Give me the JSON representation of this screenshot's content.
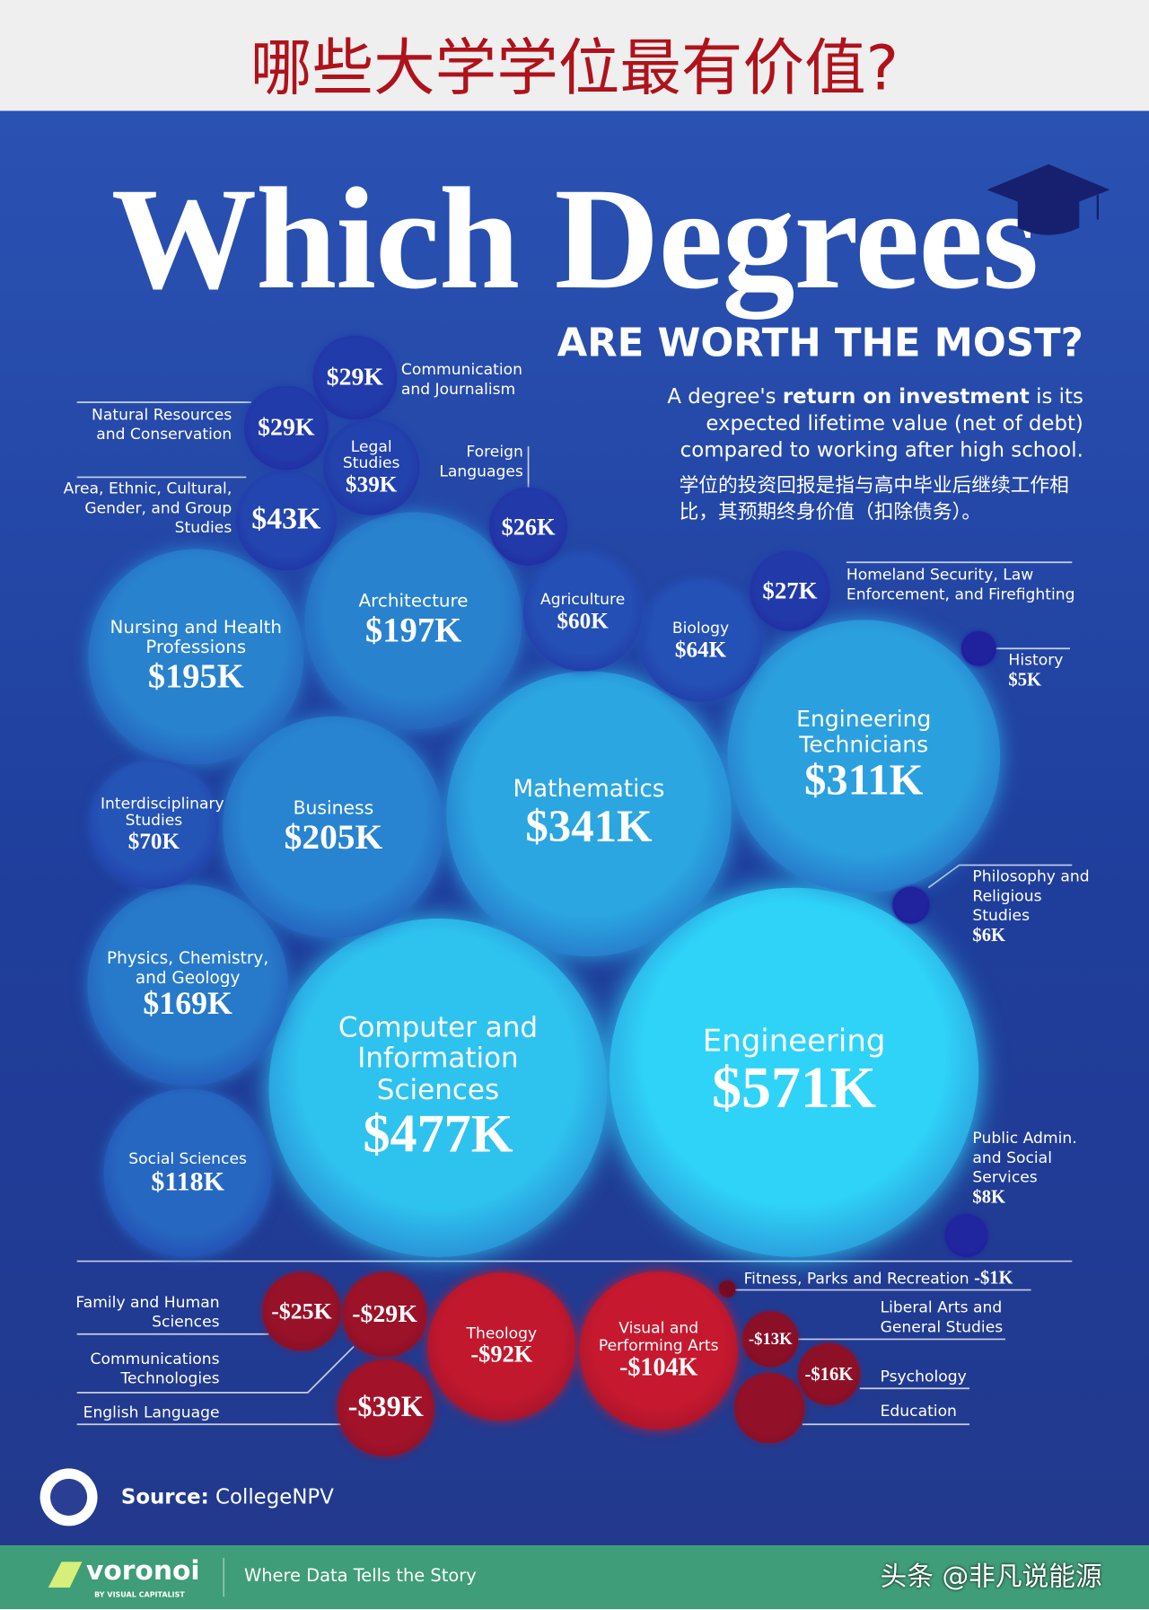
{
  "header": {
    "title": "哪些大学学位最有价值?"
  },
  "chart_data": {
    "type": "bubble",
    "title": "Which Degrees",
    "subtitle": "ARE WORTH THE MOST?",
    "description": [
      "A degree's ",
      "return on investment",
      " is its expected lifetime value (net of debt) compared to working after high school."
    ],
    "description_zh": "学位的投资回报是指与高中毕业后继续工作相比，其预期终身价值（扣除债务）。",
    "categories": [
      "Engineering",
      "Computer and Information Sciences",
      "Mathematics",
      "Engineering Technicians",
      "Business",
      "Architecture",
      "Nursing and Health Professions",
      "Physics, Chemistry, and Geology",
      "Social Sciences",
      "Interdisciplinary Studies",
      "Biology",
      "Agriculture",
      "Area, Ethnic, Cultural, Gender, and Group Studies",
      "Legal Studies",
      "Communication and Journalism",
      "Natural Resources and Conservation",
      "Homeland Security, Law Enforcement, and Firefighting",
      "Foreign Languages",
      "Public Admin. and Social Services",
      "Philosophy and Religious Studies",
      "History",
      "Fitness, Parks and Recreation",
      "Liberal Arts and General Studies",
      "Psychology",
      "Education",
      "Family and Human Sciences",
      "Communications Technologies",
      "English Language",
      "Theology",
      "Visual and Performing Arts"
    ],
    "values": [
      571,
      477,
      341,
      311,
      205,
      197,
      195,
      169,
      118,
      70,
      64,
      60,
      43,
      39,
      29,
      29,
      27,
      26,
      8,
      6,
      5,
      -1,
      -13,
      -16,
      -20,
      -25,
      -29,
      -39,
      -92,
      -104
    ],
    "value_labels": [
      "$571K",
      "$477K",
      "$341K",
      "$311K",
      "$205K",
      "$197K",
      "$195K",
      "$169K",
      "$118K",
      "$70K",
      "$64K",
      "$60K",
      "$43K",
      "$39K",
      "$29K",
      "$29K",
      "$27K",
      "$26K",
      "$8K",
      "$6K",
      "$5K",
      "-$1K",
      "-$13K",
      "-$16K",
      null,
      "-$25K",
      "-$29K",
      "-$39K",
      "-$92K",
      "-$104K"
    ],
    "positive_colors": [
      "#1e0f93",
      "#2fd3f8"
    ],
    "negative_colors": [
      "#6a0a22",
      "#cc1a30"
    ]
  },
  "source": {
    "label": "Source:",
    "text": "CollegeNPV"
  },
  "footer": {
    "brand": "voronoi",
    "brand_sub": "BY VISUAL CAPITALIST",
    "tagline": "Where Data Tells the Story",
    "watermark": "头条 @非凡说能源"
  }
}
